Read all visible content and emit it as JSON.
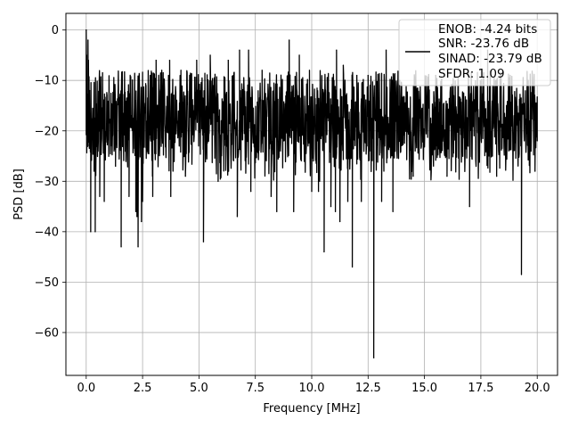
{
  "chart_data": {
    "type": "line",
    "xlabel": "Frequency [MHz]",
    "ylabel": "PSD [dB]",
    "xlim": [
      -0.9,
      20.9
    ],
    "ylim": [
      -68.5,
      3.3
    ],
    "xticks": [
      0,
      2.5,
      5,
      7.5,
      10,
      12.5,
      15,
      17.5,
      20
    ],
    "xtick_labels": [
      "0.0",
      "2.5",
      "5.0",
      "7.5",
      "10.0",
      "12.5",
      "15.0",
      "17.5",
      "20.0"
    ],
    "yticks": [
      0,
      -10,
      -20,
      -30,
      -40,
      -50,
      -60
    ],
    "ytick_labels": [
      "0",
      "−10",
      "−20",
      "−30",
      "−40",
      "−50",
      "−60"
    ],
    "grid": true,
    "legend_position": "top-right",
    "series": [
      {
        "name": "ENOB: -4.24 bits\nSNR: -23.76 dB\nSINAD: -23.79 dB\nSFDR: 1.09",
        "legend_lines": [
          "ENOB: -4.24 bits",
          "SNR: -23.76 dB",
          "SINAD: -23.79 dB",
          "SFDR: 1.09"
        ],
        "color": "#000000",
        "x_range": [
          0,
          20
        ],
        "noise_floor_typical": [
          -30,
          -8
        ],
        "points": [
          [
            0,
            0
          ],
          [
            0.02,
            -5
          ],
          [
            0.05,
            -13
          ],
          [
            0.08,
            -2
          ],
          [
            0.1,
            -6
          ],
          [
            0.15,
            -12
          ],
          [
            0.2,
            -40
          ],
          [
            0.35,
            -28
          ],
          [
            0.4,
            -40
          ],
          [
            0.6,
            -33
          ],
          [
            0.8,
            -34
          ],
          [
            1.3,
            -27
          ],
          [
            1.55,
            -43
          ],
          [
            1.9,
            -33
          ],
          [
            2.2,
            -36
          ],
          [
            2.25,
            -37
          ],
          [
            2.3,
            -43
          ],
          [
            2.45,
            -38
          ],
          [
            2.5,
            -34
          ],
          [
            2.65,
            -11
          ],
          [
            2.95,
            -33
          ],
          [
            3.1,
            -6
          ],
          [
            3.3,
            -10
          ],
          [
            3.35,
            -8
          ],
          [
            3.7,
            -6
          ],
          [
            3.75,
            -33
          ],
          [
            4.2,
            -8
          ],
          [
            4.4,
            -29
          ],
          [
            4.9,
            -6
          ],
          [
            5.2,
            -42
          ],
          [
            5.5,
            -5
          ],
          [
            5.85,
            -30
          ],
          [
            6.3,
            -6
          ],
          [
            6.7,
            -37
          ],
          [
            6.8,
            -4
          ],
          [
            7.2,
            -4
          ],
          [
            7.3,
            -32
          ],
          [
            7.8,
            -8
          ],
          [
            8.2,
            -33
          ],
          [
            8.45,
            -36
          ],
          [
            9.0,
            -2
          ],
          [
            9.2,
            -36
          ],
          [
            9.45,
            -5
          ],
          [
            9.9,
            -8
          ],
          [
            10.0,
            -32
          ],
          [
            10.3,
            -32
          ],
          [
            10.35,
            -30
          ],
          [
            10.55,
            -44
          ],
          [
            10.85,
            -35
          ],
          [
            11.05,
            -36
          ],
          [
            11.1,
            -4
          ],
          [
            11.25,
            -38
          ],
          [
            11.4,
            -7
          ],
          [
            11.6,
            -34
          ],
          [
            11.8,
            -47
          ],
          [
            12.0,
            -9
          ],
          [
            12.2,
            -34
          ],
          [
            12.5,
            -9
          ],
          [
            12.75,
            -65
          ],
          [
            13.1,
            -34
          ],
          [
            13.3,
            -4
          ],
          [
            13.6,
            -36
          ],
          [
            13.9,
            -10
          ],
          [
            14.5,
            -29
          ],
          [
            15.5,
            -9
          ],
          [
            16.0,
            -29
          ],
          [
            16.5,
            -10
          ],
          [
            17.0,
            -35
          ],
          [
            17.8,
            -4
          ],
          [
            18.2,
            -29
          ],
          [
            18.8,
            -9
          ],
          [
            19.3,
            -48.5
          ],
          [
            19.6,
            -10
          ],
          [
            19.9,
            -28
          ],
          [
            20.0,
            -22
          ]
        ]
      }
    ]
  }
}
